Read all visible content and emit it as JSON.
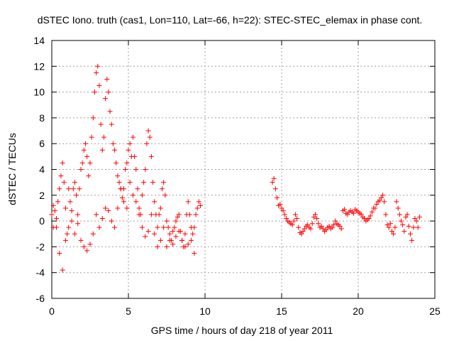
{
  "chart_data": {
    "type": "scatter",
    "title": "dSTEC Iono. truth (cas1, Lon=110, Lat=-66, h=22): STEC-STEC_elemax in phase cont.",
    "xlabel": "GPS time / hours of day 218 of year 2011",
    "ylabel": "dSTEC  / TECUs",
    "xlim": [
      0,
      25
    ],
    "ylim": [
      -6,
      14
    ],
    "xticks": [
      0,
      5,
      10,
      15,
      20,
      25
    ],
    "yticks": [
      -6,
      -4,
      -2,
      0,
      2,
      4,
      6,
      8,
      10,
      12,
      14
    ],
    "grid": true,
    "marker": "+",
    "marker_color": "#ff0000",
    "series": [
      {
        "x": [
          0.0,
          0.1,
          0.2,
          0.3,
          0.4,
          0.5,
          0.6,
          0.7,
          0.8,
          0.9,
          1.0,
          1.1,
          1.2,
          1.3,
          1.4,
          1.5,
          1.6,
          1.7,
          1.8,
          1.9,
          2.0,
          2.1,
          2.2,
          2.3,
          2.4,
          2.5,
          2.6,
          2.7,
          2.8,
          2.9,
          3.0,
          3.1,
          3.2,
          3.3,
          3.4,
          3.5,
          3.6,
          3.7,
          3.8,
          3.9,
          4.0,
          4.1,
          4.2,
          4.3,
          4.4,
          4.5,
          4.6,
          4.7,
          4.8,
          4.9,
          5.0,
          5.1,
          5.2,
          5.3,
          5.4,
          5.5,
          5.6,
          5.7,
          5.8,
          5.9,
          6.0,
          6.1,
          6.2,
          6.3,
          6.4,
          6.5,
          6.6,
          6.7,
          6.8,
          6.9,
          7.0,
          7.1,
          7.2,
          7.3,
          7.4,
          7.5,
          7.6,
          7.7,
          7.8,
          7.9,
          8.0,
          8.1,
          8.2,
          8.3,
          8.4,
          8.5,
          8.6,
          8.7,
          8.8,
          8.9,
          9.0,
          9.1,
          9.2,
          9.3,
          9.4,
          9.5,
          9.6,
          9.7
        ],
        "y": [
          0.5,
          1.2,
          0.8,
          -0.5,
          1.5,
          2.5,
          3.5,
          4.5,
          3.0,
          1.0,
          -1.0,
          2.5,
          1.5,
          0.0,
          2.5,
          3.0,
          2.0,
          0.5,
          2.5,
          4.0,
          4.5,
          5.5,
          6.0,
          5.0,
          3.5,
          4.5,
          6.5,
          8.0,
          10.0,
          11.5,
          12.0,
          10.5,
          7.5,
          5.5,
          6.5,
          9.5,
          11.0,
          10.0,
          8.5,
          7.5,
          6.0,
          5.5,
          4.5,
          3.5,
          3.0,
          2.5,
          1.8,
          2.5,
          4.0,
          4.5,
          5.5,
          6.0,
          5.0,
          6.5,
          5.0,
          4.0,
          2.5,
          1.0,
          0.5,
          2.0,
          3.0,
          4.0,
          6.0,
          7.0,
          6.5,
          5.0,
          3.0,
          1.5,
          0.5,
          -0.5,
          0.5,
          1.0,
          2.5,
          3.0,
          2.0,
          0.0,
          -0.5,
          -1.0,
          -1.5,
          -0.8,
          -0.5,
          0.0,
          0.3,
          0.5,
          -0.8,
          -1.5,
          -2.0,
          -1.0,
          0.5,
          1.5,
          0.5,
          -0.5,
          -1.0,
          -0.5,
          0.5,
          1.0,
          1.5,
          1.2
        ]
      },
      {
        "x": [
          0.1,
          0.3,
          0.5,
          0.7,
          0.9,
          1.1,
          1.3,
          1.5,
          1.7,
          1.9,
          2.1,
          2.3,
          2.5,
          2.7,
          2.9,
          3.1,
          3.3,
          3.5,
          3.7,
          3.9,
          4.1,
          4.3,
          4.5,
          4.7,
          4.9,
          5.1,
          5.3,
          5.5,
          5.7,
          5.9,
          6.1,
          6.3,
          6.5,
          6.7,
          6.9,
          7.1,
          7.3,
          7.5,
          7.7,
          7.9,
          8.1,
          8.3,
          8.5,
          8.7,
          8.9,
          9.1,
          9.3
        ],
        "y": [
          -0.5,
          0.2,
          -2.5,
          -3.8,
          -1.5,
          -0.5,
          0.8,
          -1.0,
          -0.2,
          -1.5,
          -2.0,
          -2.3,
          -1.8,
          -1.0,
          0.5,
          -0.5,
          0.2,
          1.0,
          0.8,
          0.0,
          -0.5,
          1.0,
          2.5,
          1.5,
          1.0,
          3.0,
          2.0,
          1.5,
          0.5,
          -0.5,
          -1.2,
          -0.8,
          0.5,
          -1.0,
          -2.0,
          -1.5,
          -0.5,
          -2.0,
          -1.5,
          -1.8,
          -1.2,
          -0.8,
          -1.5,
          -2.0,
          -1.8,
          -1.5,
          -2.5
        ]
      },
      {
        "x": [
          14.4,
          14.5,
          14.6,
          14.7,
          14.8,
          14.9,
          15.0,
          15.1,
          15.2,
          15.3,
          15.4,
          15.5,
          15.6,
          15.7,
          15.8,
          15.9,
          16.0,
          16.1,
          16.2,
          16.3,
          16.4,
          16.5,
          16.6,
          16.7,
          16.8,
          16.9,
          17.0,
          17.1,
          17.2,
          17.3,
          17.4,
          17.5,
          17.6,
          17.7,
          17.8,
          17.9,
          18.0,
          18.1,
          18.2,
          18.3,
          18.4,
          18.5,
          18.6,
          18.7,
          18.8,
          18.9,
          19.0,
          19.1,
          19.2,
          19.3,
          19.4,
          19.5,
          19.6,
          19.7,
          19.8,
          19.9,
          20.0,
          20.1,
          20.2,
          20.3,
          20.4,
          20.5,
          20.6,
          20.7,
          20.8,
          20.9,
          21.0,
          21.1,
          21.2,
          21.3,
          21.4,
          21.5,
          21.6,
          21.7,
          21.8,
          21.9,
          22.0,
          22.1,
          22.2,
          22.3,
          22.4,
          22.5,
          22.6,
          22.7,
          22.8,
          22.9,
          23.0,
          23.1,
          23.2,
          23.3,
          23.4,
          23.5,
          23.6,
          23.7,
          23.8,
          23.9,
          24.0
        ],
        "y": [
          3.0,
          3.3,
          2.5,
          1.8,
          1.2,
          1.3,
          1.0,
          0.8,
          0.5,
          0.2,
          0.0,
          -0.1,
          -0.2,
          -0.3,
          0.0,
          0.5,
          0.2,
          -0.5,
          -0.9,
          -1.0,
          -0.8,
          -0.6,
          -0.4,
          -0.3,
          -0.5,
          -0.6,
          -0.2,
          0.3,
          0.5,
          0.2,
          -0.2,
          -0.5,
          -0.4,
          -0.6,
          -0.8,
          -0.7,
          -0.5,
          -0.4,
          -0.6,
          -0.5,
          -0.3,
          0.0,
          -0.2,
          -0.3,
          -0.4,
          -0.6,
          0.8,
          0.9,
          0.6,
          0.5,
          0.7,
          0.8,
          0.7,
          0.6,
          0.9,
          0.8,
          0.7,
          0.6,
          0.5,
          0.3,
          0.2,
          0.0,
          0.1,
          0.2,
          0.4,
          0.7,
          1.0,
          1.0,
          1.3,
          1.5,
          1.6,
          1.8,
          2.0,
          1.5,
          0.5,
          -0.3,
          -0.5,
          -0.2,
          -0.8,
          -1.0,
          -0.5,
          1.5,
          1.0,
          0.5,
          0.0,
          -0.3,
          -0.8,
          0.3,
          0.5,
          -0.4,
          -1.0,
          -1.5,
          -0.5,
          0.2,
          0.0,
          -0.5,
          0.3
        ]
      }
    ]
  }
}
